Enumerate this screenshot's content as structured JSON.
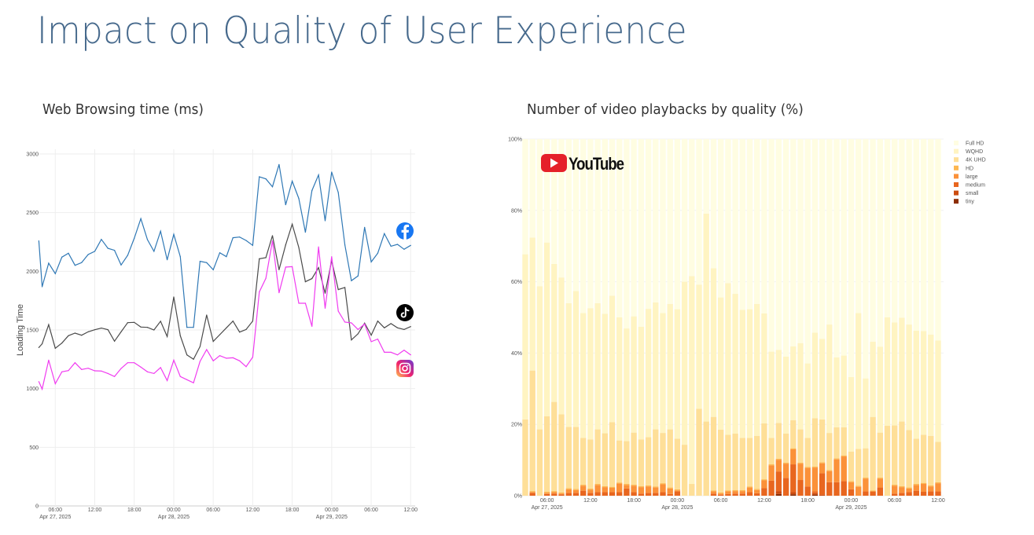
{
  "page": {
    "title": "Impact on Quality of User Experience",
    "left_subtitle": "Web Browsing time (ms)",
    "right_subtitle": "Number of video playbacks by quality (%)"
  },
  "chart_data": [
    {
      "type": "line",
      "ylabel": "Loading Time",
      "ylim": [
        0,
        3000
      ],
      "yticks": [
        "0",
        "500",
        "1000",
        "1500",
        "2000",
        "2500",
        "3000"
      ],
      "ytick_values": [
        0,
        500,
        1000,
        1500,
        2000,
        2500,
        3000
      ],
      "xticks": [
        {
          "time": "2025-04-27 06:00",
          "label": "06:00",
          "date": "Apr 27, 2025"
        },
        {
          "time": "2025-04-27 12:00",
          "label": "12:00",
          "date": ""
        },
        {
          "time": "2025-04-27 18:00",
          "label": "18:00",
          "date": ""
        },
        {
          "time": "2025-04-28 00:00",
          "label": "00:00",
          "date": "Apr 28, 2025"
        },
        {
          "time": "2025-04-28 06:00",
          "label": "06:00",
          "date": ""
        },
        {
          "time": "2025-04-28 12:00",
          "label": "12:00",
          "date": ""
        },
        {
          "time": "2025-04-28 18:00",
          "label": "18:00",
          "date": ""
        },
        {
          "time": "2025-04-29 00:00",
          "label": "00:00",
          "date": "Apr 29, 2025"
        },
        {
          "time": "2025-04-29 06:00",
          "label": "06:00",
          "date": ""
        },
        {
          "time": "2025-04-29 12:00",
          "label": "12:00",
          "date": ""
        }
      ],
      "grid": true,
      "legend": "icons at right end of lines",
      "x": [
        "2025-04-27 03:30",
        "2025-04-27 04:00",
        "2025-04-27 05:00",
        "2025-04-27 06:00",
        "2025-04-27 07:00",
        "2025-04-27 08:00",
        "2025-04-27 09:00",
        "2025-04-27 10:00",
        "2025-04-27 11:00",
        "2025-04-27 12:00",
        "2025-04-27 13:00",
        "2025-04-27 14:00",
        "2025-04-27 15:00",
        "2025-04-27 16:00",
        "2025-04-27 17:00",
        "2025-04-27 18:00",
        "2025-04-27 19:00",
        "2025-04-27 20:00",
        "2025-04-27 21:00",
        "2025-04-27 22:00",
        "2025-04-27 23:00",
        "2025-04-28 00:00",
        "2025-04-28 01:00",
        "2025-04-28 02:00",
        "2025-04-28 03:00",
        "2025-04-28 04:00",
        "2025-04-28 05:00",
        "2025-04-28 06:00",
        "2025-04-28 07:00",
        "2025-04-28 08:00",
        "2025-04-28 09:00",
        "2025-04-28 10:00",
        "2025-04-28 11:00",
        "2025-04-28 12:00",
        "2025-04-28 13:00",
        "2025-04-28 14:00",
        "2025-04-28 15:00",
        "2025-04-28 16:00",
        "2025-04-28 17:00",
        "2025-04-28 18:00",
        "2025-04-28 19:00",
        "2025-04-28 20:00",
        "2025-04-28 21:00",
        "2025-04-28 22:00",
        "2025-04-28 23:00",
        "2025-04-29 00:00",
        "2025-04-29 01:00",
        "2025-04-29 02:00",
        "2025-04-29 03:00",
        "2025-04-29 04:00",
        "2025-04-29 05:00",
        "2025-04-29 06:00",
        "2025-04-29 07:00",
        "2025-04-29 08:00",
        "2025-04-29 09:00",
        "2025-04-29 10:00",
        "2025-04-29 11:00",
        "2025-04-29 12:00"
      ],
      "series": [
        {
          "icon": "facebook-icon",
          "color": "#2f78b5",
          "values": [
            2259,
            1868,
            2069,
            1980,
            2121,
            2154,
            2051,
            2074,
            2143,
            2170,
            2272,
            2196,
            2179,
            2054,
            2136,
            2281,
            2449,
            2270,
            2170,
            2342,
            2098,
            2315,
            2125,
            1522,
            1522,
            2085,
            2074,
            2013,
            2158,
            2125,
            2286,
            2292,
            2263,
            2221,
            2806,
            2788,
            2721,
            2911,
            2567,
            2768,
            2621,
            2333,
            2688,
            2821,
            2431,
            2846,
            2672,
            2225,
            1920,
            1960,
            2375,
            2080,
            2154,
            2321,
            2214,
            2230,
            2188,
            2221
          ]
        },
        {
          "icon": "tiktok-icon",
          "color": "#4a4a4a",
          "values": [
            1350,
            1382,
            1545,
            1344,
            1388,
            1451,
            1473,
            1455,
            1484,
            1502,
            1516,
            1502,
            1404,
            1484,
            1562,
            1565,
            1525,
            1522,
            1500,
            1574,
            1444,
            1781,
            1451,
            1288,
            1250,
            1359,
            1627,
            1402,
            1460,
            1518,
            1576,
            1482,
            1504,
            1576,
            2107,
            2116,
            2304,
            2013,
            2225,
            2402,
            2203,
            1911,
            1938,
            2031,
            1813,
            2092,
            1844,
            1862,
            1415,
            1467,
            1558,
            1455,
            1576,
            1518,
            1554,
            1518,
            1504,
            1529
          ]
        },
        {
          "icon": "instagram-icon",
          "color": "#f03cf0",
          "values": [
            1060,
            996,
            1243,
            1042,
            1143,
            1154,
            1221,
            1163,
            1174,
            1152,
            1150,
            1129,
            1103,
            1172,
            1221,
            1221,
            1183,
            1143,
            1129,
            1179,
            1069,
            1243,
            1103,
            1076,
            1049,
            1232,
            1333,
            1237,
            1281,
            1259,
            1263,
            1237,
            1187,
            1268,
            1824,
            1940,
            2259,
            1817,
            2036,
            2040,
            1728,
            1728,
            1531,
            2208,
            1685,
            2125,
            1661,
            1567,
            1560,
            1504,
            1551,
            1400,
            1422,
            1310,
            1310,
            1288,
            1328,
            1288
          ]
        }
      ]
    },
    {
      "type": "bar",
      "stacked": true,
      "ylim": [
        0,
        100
      ],
      "yticks": [
        "0%",
        "20%",
        "40%",
        "60%",
        "80%",
        "100%"
      ],
      "ytick_values": [
        0,
        20,
        40,
        60,
        80,
        100
      ],
      "xticks": [
        {
          "time": "2025-04-27 06:00",
          "label": "06:00",
          "date": "Apr 27, 2025"
        },
        {
          "time": "2025-04-27 12:00",
          "label": "12:00",
          "date": ""
        },
        {
          "time": "2025-04-27 18:00",
          "label": "18:00",
          "date": ""
        },
        {
          "time": "2025-04-28 00:00",
          "label": "00:00",
          "date": "Apr 28, 2025"
        },
        {
          "time": "2025-04-28 06:00",
          "label": "06:00",
          "date": ""
        },
        {
          "time": "2025-04-28 12:00",
          "label": "12:00",
          "date": ""
        },
        {
          "time": "2025-04-28 18:00",
          "label": "18:00",
          "date": ""
        },
        {
          "time": "2025-04-29 00:00",
          "label": "00:00",
          "date": "Apr 29, 2025"
        },
        {
          "time": "2025-04-29 06:00",
          "label": "06:00",
          "date": ""
        },
        {
          "time": "2025-04-29 12:00",
          "label": "12:00",
          "date": ""
        }
      ],
      "legend": "top-right",
      "logo_text": "YouTube",
      "x": [
        "2025-04-27 03:00",
        "2025-04-27 04:00",
        "2025-04-27 05:00",
        "2025-04-27 06:00",
        "2025-04-27 07:00",
        "2025-04-27 08:00",
        "2025-04-27 09:00",
        "2025-04-27 10:00",
        "2025-04-27 11:00",
        "2025-04-27 12:00",
        "2025-04-27 13:00",
        "2025-04-27 14:00",
        "2025-04-27 15:00",
        "2025-04-27 16:00",
        "2025-04-27 17:00",
        "2025-04-27 18:00",
        "2025-04-27 19:00",
        "2025-04-27 20:00",
        "2025-04-27 21:00",
        "2025-04-27 22:00",
        "2025-04-27 23:00",
        "2025-04-28 00:00",
        "2025-04-28 01:00",
        "2025-04-28 02:00",
        "2025-04-28 03:00",
        "2025-04-28 04:00",
        "2025-04-28 05:00",
        "2025-04-28 06:00",
        "2025-04-28 07:00",
        "2025-04-28 08:00",
        "2025-04-28 09:00",
        "2025-04-28 10:00",
        "2025-04-28 11:00",
        "2025-04-28 12:00",
        "2025-04-28 13:00",
        "2025-04-28 14:00",
        "2025-04-28 15:00",
        "2025-04-28 16:00",
        "2025-04-28 17:00",
        "2025-04-28 18:00",
        "2025-04-28 19:00",
        "2025-04-28 20:00",
        "2025-04-28 21:00",
        "2025-04-28 22:00",
        "2025-04-28 23:00",
        "2025-04-29 00:00",
        "2025-04-29 01:00",
        "2025-04-29 02:00",
        "2025-04-29 03:00",
        "2025-04-29 04:00",
        "2025-04-29 05:00",
        "2025-04-29 06:00",
        "2025-04-29 07:00",
        "2025-04-29 08:00",
        "2025-04-29 09:00",
        "2025-04-29 10:00",
        "2025-04-29 11:00",
        "2025-04-29 12:00"
      ],
      "series": [
        {
          "name": "tiny",
          "color": "#8c2d04",
          "values": [
            0,
            0,
            0,
            0,
            0,
            0,
            0,
            0,
            0,
            0,
            0,
            0,
            0,
            0,
            0,
            0,
            0,
            0,
            0,
            0,
            0,
            0,
            0,
            0,
            0,
            0,
            0,
            0,
            0,
            0,
            0,
            0,
            0,
            0,
            0,
            0.5,
            0,
            0.4,
            0,
            0,
            0.3,
            0,
            0,
            0,
            0,
            0,
            0,
            0,
            0,
            0,
            0,
            0,
            0,
            0,
            0,
            0,
            0,
            0
          ]
        },
        {
          "name": "small",
          "color": "#cc4c10",
          "values": [
            0,
            0,
            0,
            0,
            0,
            0,
            0,
            0,
            0,
            0,
            0,
            0,
            0,
            0,
            0,
            0,
            0,
            0,
            0,
            0,
            0,
            0,
            0,
            0,
            0,
            0,
            0,
            0,
            0,
            0,
            0,
            0,
            0,
            0,
            0,
            0.8,
            0,
            0.6,
            0,
            0,
            0.4,
            0.3,
            0,
            0,
            0,
            0,
            0,
            0,
            0,
            0,
            0,
            0,
            0,
            0,
            0,
            0,
            0,
            0
          ]
        },
        {
          "name": "medium",
          "color": "#e8661f",
          "values": [
            0,
            0.8,
            0,
            0.5,
            0.6,
            0.4,
            0.8,
            0.8,
            1.4,
            0.8,
            1.0,
            1.0,
            1.0,
            1.0,
            2.0,
            1.0,
            0.6,
            0.8,
            0.8,
            1.0,
            0.5,
            1.2,
            0,
            0,
            0,
            0,
            0.6,
            0.3,
            0.5,
            0.6,
            0.6,
            1.0,
            0.7,
            2.1,
            4.2,
            5.5,
            5.0,
            7.8,
            4.4,
            2.6,
            0.5,
            6.0,
            3.8,
            3.8,
            4.1,
            1.8,
            0,
            1.2,
            1.2,
            2.3,
            0,
            0.6,
            0.8,
            1.0,
            1.4,
            1.1,
            1.2,
            1.2
          ]
        },
        {
          "name": "large",
          "color": "#fb9139",
          "values": [
            0,
            0.2,
            0,
            0.3,
            0.4,
            0.2,
            1.0,
            0.8,
            1.4,
            0.9,
            2.0,
            1.4,
            1.2,
            2.4,
            1.0,
            1.8,
            1.8,
            1.8,
            1.5,
            2.2,
            1.5,
            0.3,
            0,
            0,
            0,
            0,
            0.6,
            0.3,
            0.7,
            0.7,
            0.7,
            1.3,
            0.9,
            2.2,
            4.3,
            3.3,
            4.0,
            4.2,
            4.6,
            5.2,
            6.7,
            2.8,
            3.1,
            6.4,
            6.9,
            2.0,
            2.5,
            3.6,
            0,
            2.5,
            0,
            2.2,
            1.6,
            1.0,
            1.6,
            2.2,
            1.4,
            2.3
          ]
        },
        {
          "name": "HD",
          "color": "#fdb750",
          "values": [
            0,
            0.3,
            0,
            0.3,
            0.3,
            0.3,
            0.3,
            0.3,
            0.3,
            0.3,
            0.3,
            0.3,
            0.3,
            0.3,
            0.3,
            0.3,
            0.3,
            0.3,
            0.3,
            0.3,
            0.3,
            0.3,
            0,
            0,
            0,
            0,
            0.3,
            0.3,
            0.3,
            0.3,
            0.3,
            0.3,
            0.3,
            0.3,
            0.3,
            0.3,
            0.3,
            0.3,
            0.3,
            0.3,
            0.3,
            0.3,
            0.3,
            0.3,
            0.3,
            0.3,
            0.3,
            0.3,
            0.3,
            0.3,
            0,
            0.3,
            0.3,
            0.3,
            0.3,
            0.3,
            0.3,
            0.3
          ]
        },
        {
          "name": "4K UHD",
          "color": "#fedf98",
          "values": [
            21.4,
            33.8,
            18.6,
            21.2,
            25,
            21.9,
            17.2,
            17.4,
            13.1,
            13.8,
            15.3,
            14.8,
            18.1,
            11.8,
            12,
            14.6,
            13.1,
            13.5,
            16,
            14.1,
            16.3,
            14.2,
            14.3,
            3.3,
            24.4,
            20.8,
            20.6,
            17.6,
            15.6,
            15.8,
            14.6,
            13.6,
            14.9,
            15.7,
            7.4,
            10,
            8.1,
            7.9,
            9.3,
            8.1,
            13.5,
            12,
            10.4,
            8.7,
            7.9,
            8.3,
            10.3,
            8.2,
            20.6,
            12.6,
            19.6,
            16.6,
            18.1,
            16.1,
            12.7,
            13.5,
            13.9,
            11.3
          ]
        },
        {
          "name": "WQHD",
          "color": "#fff4c2",
          "values": [
            46.3,
            37.3,
            40.1,
            48.7,
            38.7,
            38.4,
            34.7,
            38.1,
            35,
            36.8,
            35.4,
            33.5,
            35.5,
            34.5,
            31.6,
            32.6,
            31.6,
            36,
            35.6,
            33.6,
            35.2,
            36.3,
            45.7,
            58.3,
            34.8,
            58.3,
            41.7,
            37.1,
            42.5,
            39.2,
            35.9,
            36.1,
            37,
            30.8,
            24.2,
            20.5,
            21.6,
            20.7,
            24.2,
            20.9,
            24,
            22.6,
            30.4,
            19.6,
            20.1,
            20.9,
            38.1,
            19.6,
            21.1,
            24.1,
            30.4,
            28.9,
            29.1,
            29.6,
            30.3,
            29.1,
            28.4,
            28.4
          ]
        },
        {
          "name": "Full HD",
          "color": "#fffde2",
          "values": [
            32.3,
            27.6,
            41.3,
            29,
            35,
            38.8,
            46,
            42.6,
            48.8,
            47.4,
            46,
            49,
            43.9,
            50,
            53.1,
            49.7,
            52.6,
            47.6,
            45.8,
            48.8,
            46.2,
            47.7,
            40,
            38.4,
            40.8,
            20.9,
            36.2,
            44.4,
            40.4,
            43.4,
            47.9,
            47.7,
            46.2,
            48.9,
            59.6,
            59.1,
            61,
            58.1,
            57.2,
            62.9,
            54.3,
            56,
            52,
            61.2,
            60.7,
            66.7,
            48.8,
            67.1,
            56.8,
            58.2,
            50,
            51.4,
            50.1,
            52,
            53.7,
            53.8,
            54.8,
            56.5
          ]
        }
      ],
      "legend_order": [
        "Full HD",
        "WQHD",
        "4K UHD",
        "HD",
        "large",
        "medium",
        "small",
        "tiny"
      ]
    }
  ]
}
